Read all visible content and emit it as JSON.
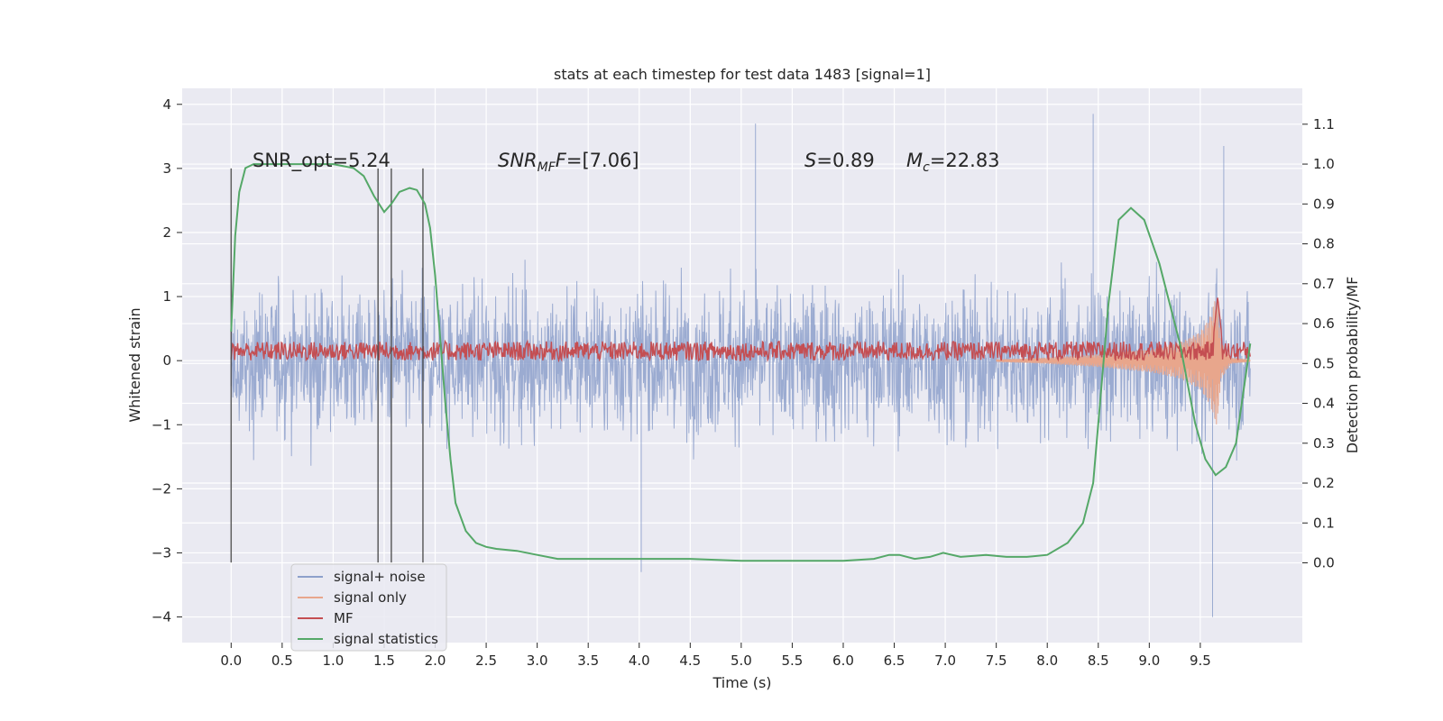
{
  "chart_data": {
    "type": "line",
    "title": "stats at each timestep for test data 1483 [signal=1]",
    "xlabel": "Time (s)",
    "ylabel_left": "Whitened strain",
    "ylabel_right": "Detection probability/MF",
    "xlim": [
      -0.48,
      10.5
    ],
    "ylim_left": [
      -4.4,
      4.25
    ],
    "ylim_right": [
      -0.2,
      1.19
    ],
    "x_ticks": [
      "0.0",
      "0.5",
      "1.0",
      "1.5",
      "2.0",
      "2.5",
      "3.0",
      "3.5",
      "4.0",
      "4.5",
      "5.0",
      "5.5",
      "6.0",
      "6.5",
      "7.0",
      "7.5",
      "8.0",
      "8.5",
      "9.0",
      "9.5"
    ],
    "y_left_ticks": [
      "4",
      "3",
      "2",
      "1",
      "0",
      "−1",
      "−2",
      "−3",
      "−4"
    ],
    "y_right_ticks": [
      "1.1",
      "1.0",
      "0.9",
      "0.8",
      "0.7",
      "0.6",
      "0.5",
      "0.4",
      "0.3",
      "0.2",
      "0.1",
      "0.0"
    ],
    "grid": true,
    "legend_placement": "lower-left",
    "legend": [
      {
        "name": "signal+ noise",
        "color": "#8da0cb"
      },
      {
        "name": "signal only",
        "color": "#e8a68c"
      },
      {
        "name": "MF",
        "color": "#c44e52"
      },
      {
        "name": "signal statistics",
        "color": "#55a868"
      }
    ],
    "annotations": {
      "snr_opt": "SNR_opt=5.24",
      "snr_mf_base": "SNR",
      "snr_mf_sub": "MF",
      "snr_mf_rest": "=[7.06]",
      "s_base": "S",
      "s_rest": "=0.89",
      "mc_base": "M",
      "mc_sub": "c",
      "mc_rest": "=22.83"
    },
    "vertical_markers_x": [
      0.0,
      1.44,
      1.57,
      1.88
    ],
    "vertical_markers_range": [
      -3.15,
      3.0
    ],
    "series": [
      {
        "name": "signal+ noise",
        "axis": "left",
        "color": "#8da0cb",
        "x_range": [
          0.0,
          9.99
        ],
        "typical_range": [
          -1.8,
          1.8
        ],
        "extremes": [
          [
            5.14,
            3.7
          ],
          [
            8.45,
            3.85
          ],
          [
            9.62,
            -4.0
          ],
          [
            4.02,
            -3.3
          ],
          [
            9.73,
            3.35
          ]
        ]
      },
      {
        "name": "signal only",
        "axis": "left",
        "color": "#e8a68c",
        "x": [
          7.5,
          8.0,
          8.5,
          9.0,
          9.3,
          9.5,
          9.6,
          9.65,
          9.67,
          9.7,
          9.8,
          9.99
        ],
        "envelope": [
          0.02,
          0.05,
          0.1,
          0.18,
          0.28,
          0.45,
          0.7,
          1.0,
          1.0,
          0.3,
          0.05,
          0.02
        ]
      },
      {
        "name": "MF",
        "axis": "left",
        "color": "#c44e52",
        "x_range": [
          0.0,
          9.99
        ],
        "level": 0.15,
        "fluctuation": 0.15,
        "peak": [
          9.67,
          1.0
        ]
      },
      {
        "name": "signal statistics",
        "axis": "right",
        "color": "#55a868",
        "x": [
          0.0,
          0.04,
          0.08,
          0.14,
          0.22,
          0.35,
          0.6,
          1.0,
          1.2,
          1.3,
          1.4,
          1.5,
          1.57,
          1.65,
          1.75,
          1.82,
          1.9,
          1.95,
          2.0,
          2.05,
          2.1,
          2.15,
          2.2,
          2.3,
          2.4,
          2.5,
          2.6,
          2.8,
          3.0,
          3.2,
          3.5,
          4.0,
          4.5,
          5.0,
          5.5,
          6.0,
          6.3,
          6.45,
          6.55,
          6.7,
          6.85,
          6.98,
          7.15,
          7.4,
          7.6,
          7.8,
          8.0,
          8.2,
          8.35,
          8.45,
          8.5,
          8.6,
          8.7,
          8.82,
          8.95,
          9.1,
          9.3,
          9.45,
          9.55,
          9.65,
          9.75,
          9.85,
          9.99
        ],
        "y": [
          0.58,
          0.82,
          0.93,
          0.99,
          1.0,
          1.0,
          1.0,
          1.0,
          0.99,
          0.97,
          0.92,
          0.88,
          0.9,
          0.93,
          0.94,
          0.935,
          0.9,
          0.84,
          0.72,
          0.56,
          0.4,
          0.26,
          0.15,
          0.08,
          0.05,
          0.04,
          0.035,
          0.03,
          0.02,
          0.01,
          0.01,
          0.01,
          0.01,
          0.005,
          0.005,
          0.005,
          0.01,
          0.02,
          0.02,
          0.01,
          0.015,
          0.025,
          0.015,
          0.02,
          0.015,
          0.015,
          0.02,
          0.05,
          0.1,
          0.2,
          0.35,
          0.65,
          0.86,
          0.89,
          0.86,
          0.75,
          0.55,
          0.35,
          0.26,
          0.22,
          0.24,
          0.3,
          0.55
        ]
      }
    ]
  }
}
